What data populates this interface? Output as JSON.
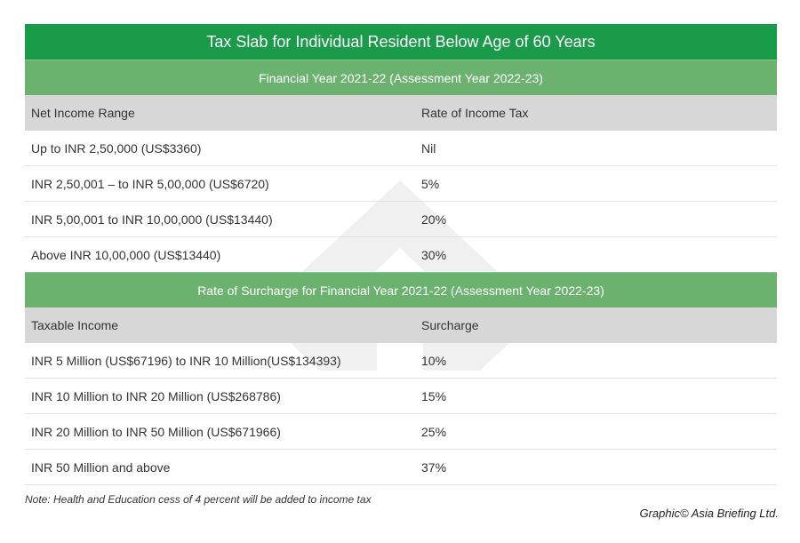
{
  "title": "Tax Slab for Individual Resident Below Age of 60 Years",
  "sections": [
    {
      "heading": "Financial Year 2021-22 (Assessment Year 2022-23)",
      "columns": [
        "Net Income Range",
        "Rate of Income Tax"
      ],
      "rows": [
        [
          "Up to INR 2,50,000 (US$3360)",
          "Nil"
        ],
        [
          "INR 2,50,001 – to INR 5,00,000 (US$6720)",
          "5%"
        ],
        [
          "INR 5,00,001 to INR 10,00,000 (US$13440)",
          "20%"
        ],
        [
          "Above INR 10,00,000 (US$13440)",
          "30%"
        ]
      ]
    },
    {
      "heading": "Rate of Surcharge for Financial Year 2021-22 (Assessment Year 2022-23)",
      "columns": [
        "Taxable Income",
        "Surcharge"
      ],
      "rows": [
        [
          "INR 5 Million (US$67196) to INR 10 Million(US$134393)",
          "10%"
        ],
        [
          "INR 10 Million to INR 20 Million (US$268786)",
          "15%"
        ],
        [
          "INR 20 Million to INR 50 Million (US$671966)",
          "25%"
        ],
        [
          "INR 50 Million and above",
          "37%"
        ]
      ]
    }
  ],
  "note": "Note: Health and Education cess of 4 percent will be added to income tax",
  "credit": "Graphic© Asia Briefing Ltd.",
  "colors": {
    "title_bg": "#1a9b4a",
    "section_bg": "#6cb26f",
    "header_bg": "#d7d7d7"
  }
}
